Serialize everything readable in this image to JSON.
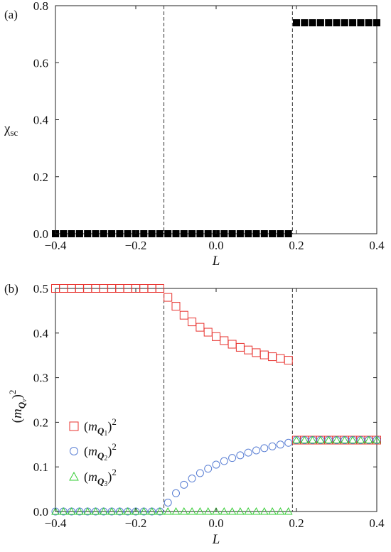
{
  "chart_data": [
    {
      "panel_label": "(a)",
      "type": "scatter",
      "xlabel": "L",
      "ylabel": "χsc",
      "xlim": [
        -0.4,
        0.4
      ],
      "ylim": [
        0.0,
        0.8
      ],
      "xticks": [
        "−0.4",
        "−0.2",
        "0.0",
        "0.2",
        "0.4"
      ],
      "yticks": [
        "0.0",
        "0.2",
        "0.4",
        "0.6",
        "0.8"
      ],
      "vlines": [
        -0.13,
        0.19
      ],
      "grid": false,
      "series": [
        {
          "marker": "square-filled",
          "color": "#000000",
          "x": [
            -0.4,
            -0.38,
            -0.36,
            -0.34,
            -0.32,
            -0.3,
            -0.28,
            -0.26,
            -0.24,
            -0.22,
            -0.2,
            -0.18,
            -0.16,
            -0.14,
            -0.12,
            -0.1,
            -0.08,
            -0.06,
            -0.04,
            -0.02,
            0.0,
            0.02,
            0.04,
            0.06,
            0.08,
            0.1,
            0.12,
            0.14,
            0.16,
            0.18,
            0.2,
            0.22,
            0.24,
            0.26,
            0.28,
            0.3,
            0.32,
            0.34,
            0.36,
            0.38,
            0.4
          ],
          "y": [
            0,
            0,
            0,
            0,
            0,
            0,
            0,
            0,
            0,
            0,
            0,
            0,
            0,
            0,
            0,
            0,
            0,
            0,
            0,
            0,
            0,
            0,
            0,
            0,
            0,
            0,
            0,
            0,
            0,
            0,
            0.74,
            0.74,
            0.74,
            0.74,
            0.74,
            0.74,
            0.74,
            0.74,
            0.74,
            0.74,
            0.74
          ]
        }
      ]
    },
    {
      "panel_label": "(b)",
      "type": "scatter",
      "xlabel": "L",
      "ylabel": "(m_Qν)²",
      "xlim": [
        -0.4,
        0.4
      ],
      "ylim": [
        0.0,
        0.5
      ],
      "xticks": [
        "−0.4",
        "−0.2",
        "0.0",
        "0.2",
        "0.4"
      ],
      "yticks": [
        "0.0",
        "0.1",
        "0.2",
        "0.3",
        "0.4",
        "0.5"
      ],
      "vlines": [
        -0.13,
        0.19
      ],
      "grid": false,
      "legend_position": "lower-left",
      "series": [
        {
          "name": "(m_Q1)²",
          "marker": "square-open",
          "color": "#e8332f",
          "x": [
            -0.4,
            -0.38,
            -0.36,
            -0.34,
            -0.32,
            -0.3,
            -0.28,
            -0.26,
            -0.24,
            -0.22,
            -0.2,
            -0.18,
            -0.16,
            -0.14,
            -0.12,
            -0.1,
            -0.08,
            -0.06,
            -0.04,
            -0.02,
            0.0,
            0.02,
            0.04,
            0.06,
            0.08,
            0.1,
            0.12,
            0.14,
            0.16,
            0.18,
            0.2,
            0.22,
            0.24,
            0.26,
            0.28,
            0.3,
            0.32,
            0.34,
            0.36,
            0.38,
            0.4
          ],
          "y": [
            0.5,
            0.5,
            0.5,
            0.5,
            0.5,
            0.5,
            0.5,
            0.5,
            0.5,
            0.5,
            0.5,
            0.5,
            0.5,
            0.5,
            0.48,
            0.46,
            0.44,
            0.425,
            0.413,
            0.402,
            0.392,
            0.383,
            0.375,
            0.368,
            0.362,
            0.356,
            0.351,
            0.347,
            0.343,
            0.339,
            0.16,
            0.16,
            0.16,
            0.16,
            0.16,
            0.16,
            0.16,
            0.16,
            0.16,
            0.16,
            0.16
          ]
        },
        {
          "name": "(m_Q2)²",
          "marker": "circle-open",
          "color": "#5a7fd4",
          "x": [
            -0.4,
            -0.38,
            -0.36,
            -0.34,
            -0.32,
            -0.3,
            -0.28,
            -0.26,
            -0.24,
            -0.22,
            -0.2,
            -0.18,
            -0.16,
            -0.14,
            -0.12,
            -0.1,
            -0.08,
            -0.06,
            -0.04,
            -0.02,
            0.0,
            0.02,
            0.04,
            0.06,
            0.08,
            0.1,
            0.12,
            0.14,
            0.16,
            0.18,
            0.2,
            0.22,
            0.24,
            0.26,
            0.28,
            0.3,
            0.32,
            0.34,
            0.36,
            0.38,
            0.4
          ],
          "y": [
            0,
            0,
            0,
            0,
            0,
            0,
            0,
            0,
            0,
            0,
            0,
            0,
            0,
            0,
            0.02,
            0.041,
            0.06,
            0.074,
            0.086,
            0.096,
            0.105,
            0.113,
            0.12,
            0.126,
            0.132,
            0.137,
            0.142,
            0.146,
            0.15,
            0.154,
            0.16,
            0.16,
            0.16,
            0.16,
            0.16,
            0.16,
            0.16,
            0.16,
            0.16,
            0.16,
            0.16
          ]
        },
        {
          "name": "(m_Q3)²",
          "marker": "triangle-open",
          "color": "#33cc33",
          "x": [
            -0.4,
            -0.38,
            -0.36,
            -0.34,
            -0.32,
            -0.3,
            -0.28,
            -0.26,
            -0.24,
            -0.22,
            -0.2,
            -0.18,
            -0.16,
            -0.14,
            -0.12,
            -0.1,
            -0.08,
            -0.06,
            -0.04,
            -0.02,
            0.0,
            0.02,
            0.04,
            0.06,
            0.08,
            0.1,
            0.12,
            0.14,
            0.16,
            0.18,
            0.2,
            0.22,
            0.24,
            0.26,
            0.28,
            0.3,
            0.32,
            0.34,
            0.36,
            0.38,
            0.4
          ],
          "y": [
            0,
            0,
            0,
            0,
            0,
            0,
            0,
            0,
            0,
            0,
            0,
            0,
            0,
            0,
            0,
            0,
            0,
            0,
            0,
            0,
            0,
            0,
            0,
            0,
            0,
            0,
            0,
            0,
            0,
            0,
            0.16,
            0.16,
            0.16,
            0.16,
            0.16,
            0.16,
            0.16,
            0.16,
            0.16,
            0.16,
            0.16
          ]
        }
      ]
    }
  ]
}
